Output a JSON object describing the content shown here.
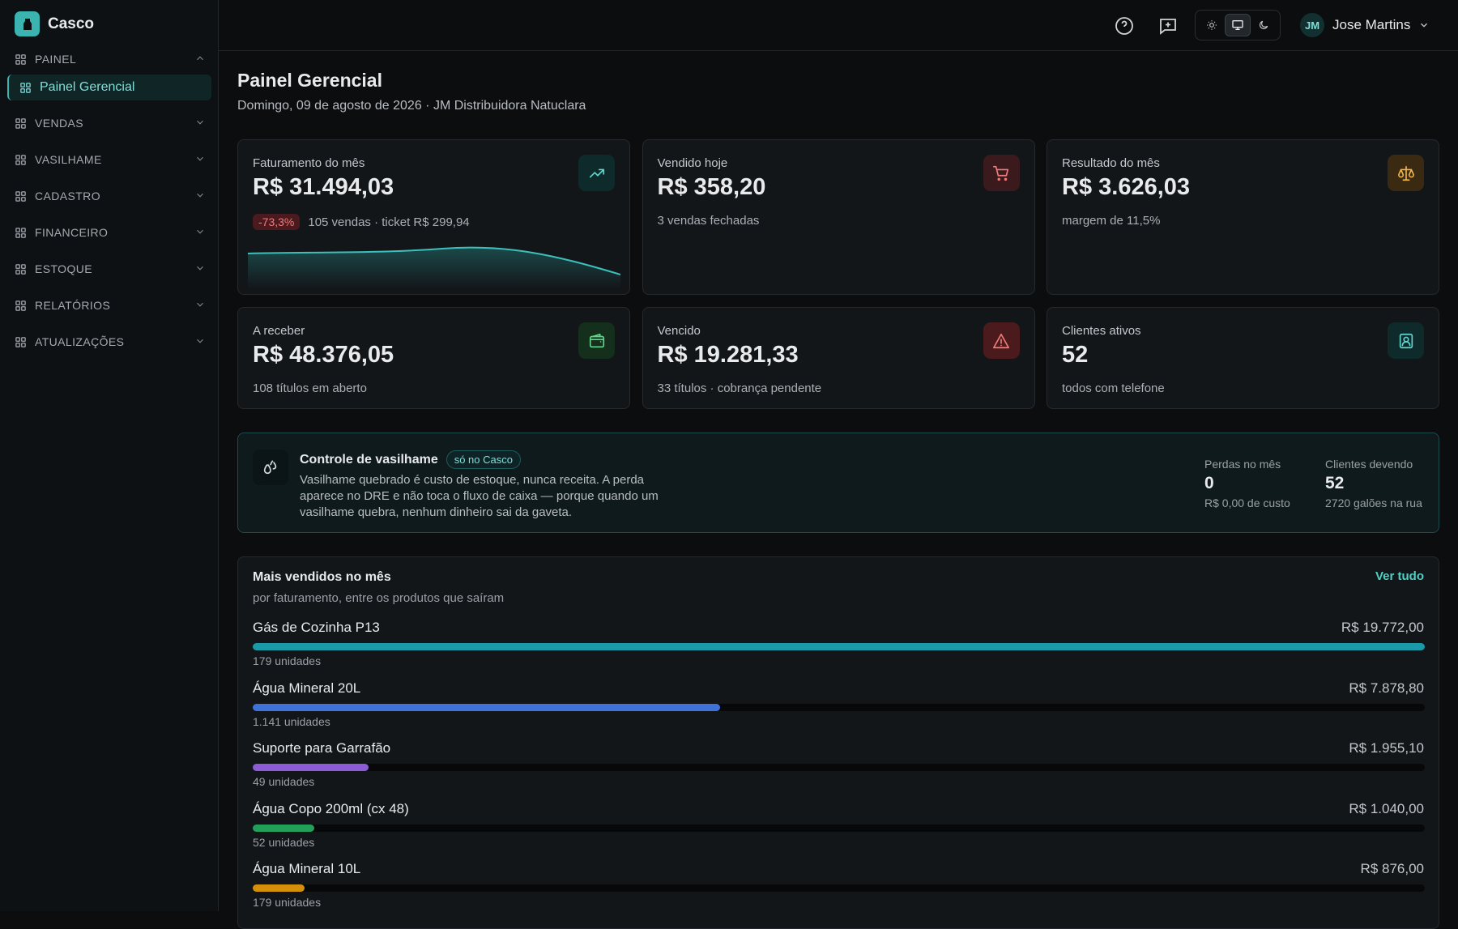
{
  "sidebar": {
    "brand": "Casco",
    "sections": [
      {
        "label": "PAINEL",
        "items": [
          "Painel Gerencial"
        ]
      },
      {
        "label": "VENDAS"
      },
      {
        "label": "VASILHAME"
      },
      {
        "label": "CADASTRO"
      },
      {
        "label": "FINANCEIRO"
      },
      {
        "label": "ESTOQUE"
      },
      {
        "label": "RELATÓRIOS"
      },
      {
        "label": "ATUALIZAÇÕES"
      }
    ]
  },
  "header": {
    "user_initials": "JM",
    "user_name": "Jose Martins"
  },
  "page": {
    "title": "Painel Gerencial",
    "subtitle": "Domingo, 09 de agosto de 2026 · JM Distribuidora Natuclara"
  },
  "cards": [
    {
      "label": "Faturamento do mês",
      "value": "R$ 31.494,03",
      "badge": "-73,3%",
      "note": "105 vendas · ticket R$ 299,94"
    },
    {
      "label": "Vendido hoje",
      "value": "R$ 358,20",
      "note": "3 vendas fechadas"
    },
    {
      "label": "Resultado do mês",
      "value": "R$ 3.626,03",
      "note": "margem de 11,5%"
    },
    {
      "label": "A receber",
      "value": "R$ 48.376,05",
      "note": "108 títulos em aberto"
    },
    {
      "label": "Vencido",
      "value": "R$ 19.281,33",
      "note": "33 títulos · cobrança pendente"
    },
    {
      "label": "Clientes ativos",
      "value": "52",
      "note": "todos com telefone"
    }
  ],
  "vasilhame": {
    "title": "Controle de vasilhame",
    "tag": "só no Casco",
    "text": "Vasilhame quebrado é custo de estoque, nunca receita. A perda aparece no DRE e não toca o fluxo de caixa — porque quando um vasilhame quebra, nenhum dinheiro sai da gaveta.",
    "stats": [
      {
        "label": "Perdas no mês",
        "value": "0",
        "note": "R$ 0,00 de custo"
      },
      {
        "label": "Clientes devendo",
        "value": "52",
        "note": "2720 galões na rua"
      }
    ]
  },
  "top_products": {
    "title": "Mais vendidos no mês",
    "subtitle": "por faturamento, entre os produtos que saíram",
    "link": "Ver tudo",
    "items": [
      {
        "name": "Gás de Cozinha P13",
        "revenue": 19772.0,
        "revenue_label": "R$ 19.772,00",
        "units": "179 unidades",
        "color": "#1a9aa8"
      },
      {
        "name": "Água Mineral 20L",
        "revenue": 7878.8,
        "revenue_label": "R$ 7.878,80",
        "units": "1.141 unidades",
        "color": "#3f72d6"
      },
      {
        "name": "Suporte para Garrafão",
        "revenue": 1955.1,
        "revenue_label": "R$ 1.955,10",
        "units": "49 unidades",
        "color": "#8b5cd6"
      },
      {
        "name": "Água Copo 200ml (cx 48)",
        "revenue": 1040.0,
        "revenue_label": "R$ 1.040,00",
        "units": "52 unidades",
        "color": "#22a05a"
      },
      {
        "name": "Água Mineral 10L",
        "revenue": 876.0,
        "revenue_label": "R$ 876,00",
        "units": "179 unidades",
        "color": "#d4900a"
      }
    ]
  }
}
